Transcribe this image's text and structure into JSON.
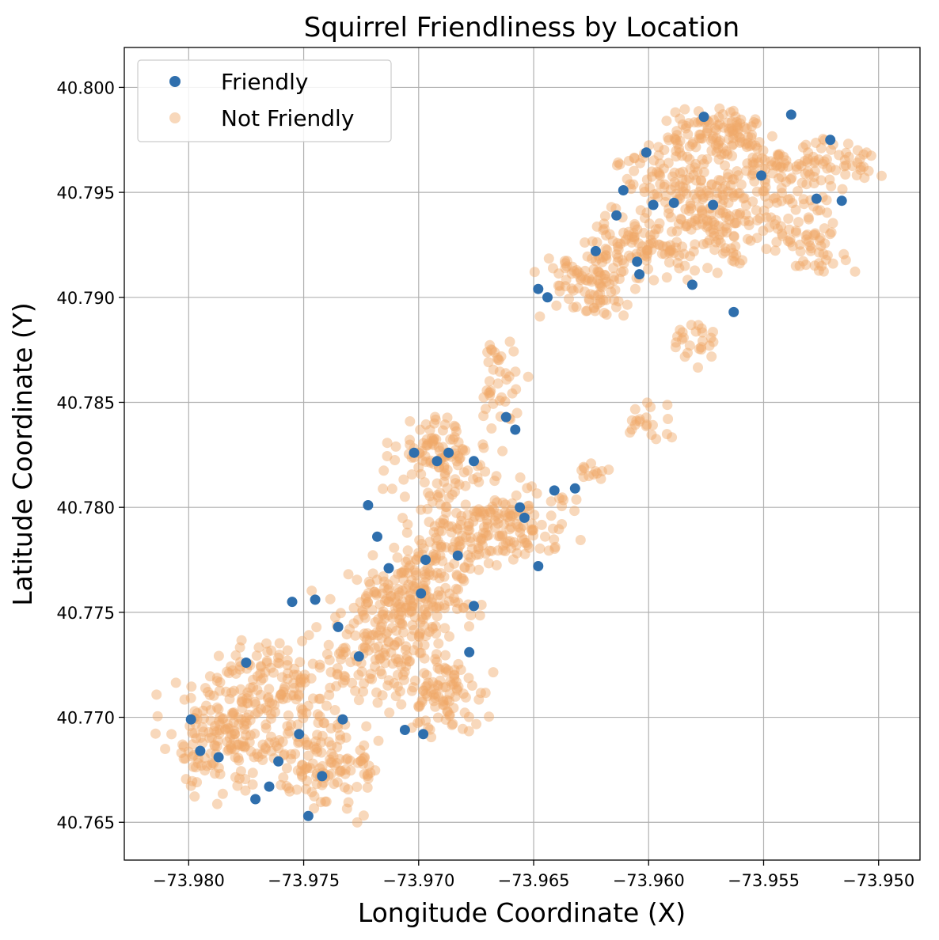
{
  "chart_data": {
    "type": "scatter",
    "title": "Squirrel Friendliness by Location",
    "xlabel": "Longitude Coordinate (X)",
    "ylabel": "Latitude Coordinate (Y)",
    "xlim": [
      -73.9828,
      -73.9482
    ],
    "ylim": [
      40.7632,
      40.8019
    ],
    "xticks": [
      -73.98,
      -73.975,
      -73.97,
      -73.965,
      -73.96,
      -73.955,
      -73.95
    ],
    "xtick_labels": [
      "−73.980",
      "−73.975",
      "−73.970",
      "−73.965",
      "−73.960",
      "−73.955",
      "−73.950"
    ],
    "yticks": [
      40.765,
      40.77,
      40.775,
      40.78,
      40.785,
      40.79,
      40.795,
      40.8
    ],
    "ytick_labels": [
      "40.765",
      "40.770",
      "40.775",
      "40.780",
      "40.785",
      "40.790",
      "40.795",
      "40.800"
    ],
    "grid": true,
    "legend_position": "top-left",
    "series": [
      {
        "name": "Friendly",
        "color": "#2f6fad",
        "opacity": 1.0,
        "x": [
          -73.9799,
          -73.9795,
          -73.9787,
          -73.9775,
          -73.9771,
          -73.9765,
          -73.9761,
          -73.9755,
          -73.9752,
          -73.9748,
          -73.9745,
          -73.9742,
          -73.9735,
          -73.9733,
          -73.9726,
          -73.9722,
          -73.9718,
          -73.9713,
          -73.9706,
          -73.9702,
          -73.9699,
          -73.9698,
          -73.9692,
          -73.9687,
          -73.9683,
          -73.9678,
          -73.9676,
          -73.9662,
          -73.9658,
          -73.9654,
          -73.9648,
          -73.9641,
          -73.9632,
          -73.9623,
          -73.9614,
          -73.9611,
          -73.9605,
          -73.9601,
          -73.9598,
          -73.9589,
          -73.9581,
          -73.9576,
          -73.9572,
          -73.9563,
          -73.9551,
          -73.9538,
          -73.9527,
          -73.9521,
          -73.9516,
          -73.9648,
          -73.9644,
          -73.9656,
          -73.9676,
          -73.9604,
          -73.9697
        ],
        "y": [
          40.7699,
          40.7684,
          40.7681,
          40.7726,
          40.7661,
          40.7667,
          40.7679,
          40.7755,
          40.7692,
          40.7653,
          40.7756,
          40.7672,
          40.7743,
          40.7699,
          40.7729,
          40.7801,
          40.7786,
          40.7771,
          40.7694,
          40.7826,
          40.7759,
          40.7692,
          40.7822,
          40.7826,
          40.7777,
          40.7731,
          40.7753,
          40.7843,
          40.7837,
          40.7795,
          40.7772,
          40.7808,
          40.7809,
          40.7922,
          40.7939,
          40.7951,
          40.7917,
          40.7969,
          40.7944,
          40.7945,
          40.7906,
          40.7986,
          40.7944,
          40.7893,
          40.7958,
          40.7987,
          40.7947,
          40.7975,
          40.7946,
          40.7904,
          40.79,
          40.78,
          40.7822,
          40.7911,
          40.7775
        ]
      },
      {
        "name": "Not Friendly",
        "color": "#f0a868",
        "opacity": 0.45,
        "x": [],
        "y": []
      }
    ]
  }
}
